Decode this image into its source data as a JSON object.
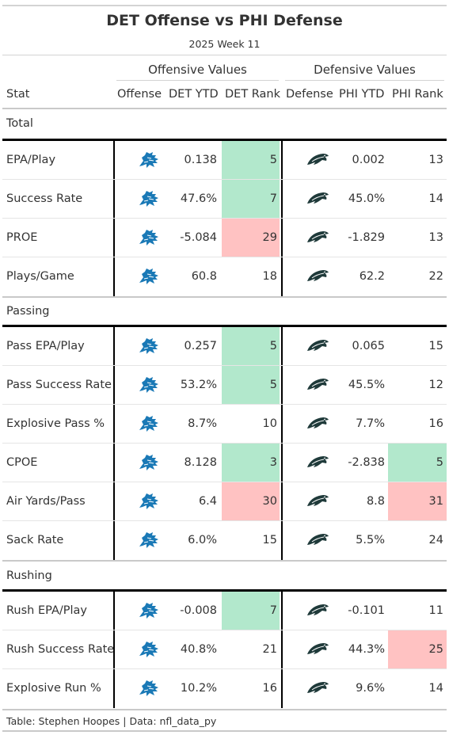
{
  "title": "DET Offense vs PHI Defense",
  "subtitle": "2025 Week 11",
  "spanners": {
    "offense": "Offensive Values",
    "defense": "Defensive Values"
  },
  "columns": {
    "stat": "Stat",
    "offense": "Offense",
    "det_ytd": "DET YTD",
    "det_rank": "DET Rank",
    "defense": "Defense",
    "phi_ytd": "PHI YTD",
    "phi_rank": "PHI Rank"
  },
  "colors": {
    "good": "#b2e8cc",
    "bad": "#ffc2c2"
  },
  "icons": {
    "offense": "lions-logo-icon",
    "defense": "eagles-logo-icon"
  },
  "groups": [
    {
      "label": "Total",
      "rows": [
        {
          "stat": "EPA/Play",
          "det_ytd": "0.138",
          "det_rank": "5",
          "phi_ytd": "0.002",
          "phi_rank": "13",
          "det_fill": "good",
          "phi_fill": ""
        },
        {
          "stat": "Success Rate",
          "det_ytd": "47.6%",
          "det_rank": "7",
          "phi_ytd": "45.0%",
          "phi_rank": "14",
          "det_fill": "good",
          "phi_fill": ""
        },
        {
          "stat": "PROE",
          "det_ytd": "-5.084",
          "det_rank": "29",
          "phi_ytd": "-1.829",
          "phi_rank": "13",
          "det_fill": "bad",
          "phi_fill": ""
        },
        {
          "stat": "Plays/Game",
          "det_ytd": "60.8",
          "det_rank": "18",
          "phi_ytd": "62.2",
          "phi_rank": "22",
          "det_fill": "",
          "phi_fill": ""
        }
      ]
    },
    {
      "label": "Passing",
      "rows": [
        {
          "stat": "Pass EPA/Play",
          "det_ytd": "0.257",
          "det_rank": "5",
          "phi_ytd": "0.065",
          "phi_rank": "15",
          "det_fill": "good",
          "phi_fill": ""
        },
        {
          "stat": "Pass Success Rate",
          "det_ytd": "53.2%",
          "det_rank": "5",
          "phi_ytd": "45.5%",
          "phi_rank": "12",
          "det_fill": "good",
          "phi_fill": ""
        },
        {
          "stat": "Explosive Pass %",
          "det_ytd": "8.7%",
          "det_rank": "10",
          "phi_ytd": "7.7%",
          "phi_rank": "16",
          "det_fill": "",
          "phi_fill": ""
        },
        {
          "stat": "CPOE",
          "det_ytd": "8.128",
          "det_rank": "3",
          "phi_ytd": "-2.838",
          "phi_rank": "5",
          "det_fill": "good",
          "phi_fill": "good"
        },
        {
          "stat": "Air Yards/Pass",
          "det_ytd": "6.4",
          "det_rank": "30",
          "phi_ytd": "8.8",
          "phi_rank": "31",
          "det_fill": "bad",
          "phi_fill": "bad"
        },
        {
          "stat": "Sack Rate",
          "det_ytd": "6.0%",
          "det_rank": "15",
          "phi_ytd": "5.5%",
          "phi_rank": "24",
          "det_fill": "",
          "phi_fill": ""
        }
      ]
    },
    {
      "label": "Rushing",
      "rows": [
        {
          "stat": "Rush EPA/Play",
          "det_ytd": "-0.008",
          "det_rank": "7",
          "phi_ytd": "-0.101",
          "phi_rank": "11",
          "det_fill": "good",
          "phi_fill": ""
        },
        {
          "stat": "Rush Success Rate",
          "det_ytd": "40.8%",
          "det_rank": "21",
          "phi_ytd": "44.3%",
          "phi_rank": "25",
          "det_fill": "",
          "phi_fill": "bad"
        },
        {
          "stat": "Explosive Run %",
          "det_ytd": "10.2%",
          "det_rank": "16",
          "phi_ytd": "9.6%",
          "phi_rank": "14",
          "det_fill": "",
          "phi_fill": ""
        }
      ]
    }
  ],
  "footer": "Table: Stephen Hoopes | Data: nfl_data_py"
}
